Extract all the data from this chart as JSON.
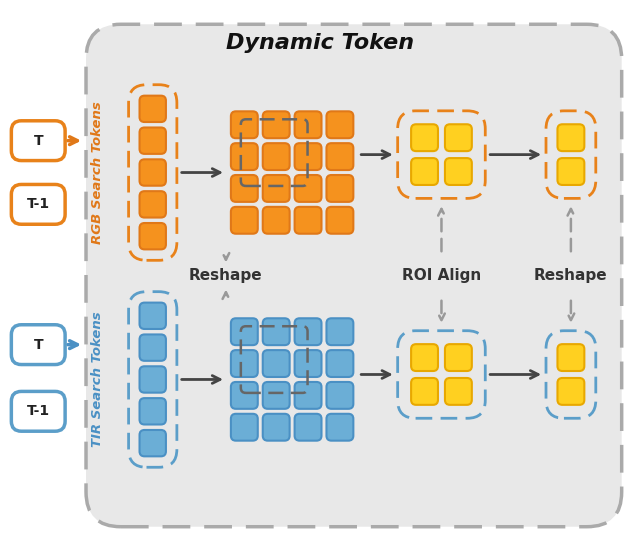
{
  "title": "Dynamic Token",
  "title_fontsize": 16,
  "title_fontweight": "bold",
  "bg_color": "#e8e8e8",
  "orange_color": "#F5921E",
  "orange_dark": "#E07818",
  "orange_border": "#E8821A",
  "blue_color": "#6BAED6",
  "blue_dark": "#4A90C4",
  "blue_border": "#5B9EC9",
  "yellow_color": "#FFD020",
  "yellow_border": "#E8A800",
  "gray_arrow": "#999999",
  "dark_arrow": "#444444",
  "rgb_label": "RGB Search Tokens",
  "tir_label": "TIR Search Tokens",
  "reshape_label": "Reshape",
  "roi_align_label": "ROI Align",
  "reshape2_label": "Reshape",
  "label_fontsize": 11,
  "label_fontweight": "bold"
}
